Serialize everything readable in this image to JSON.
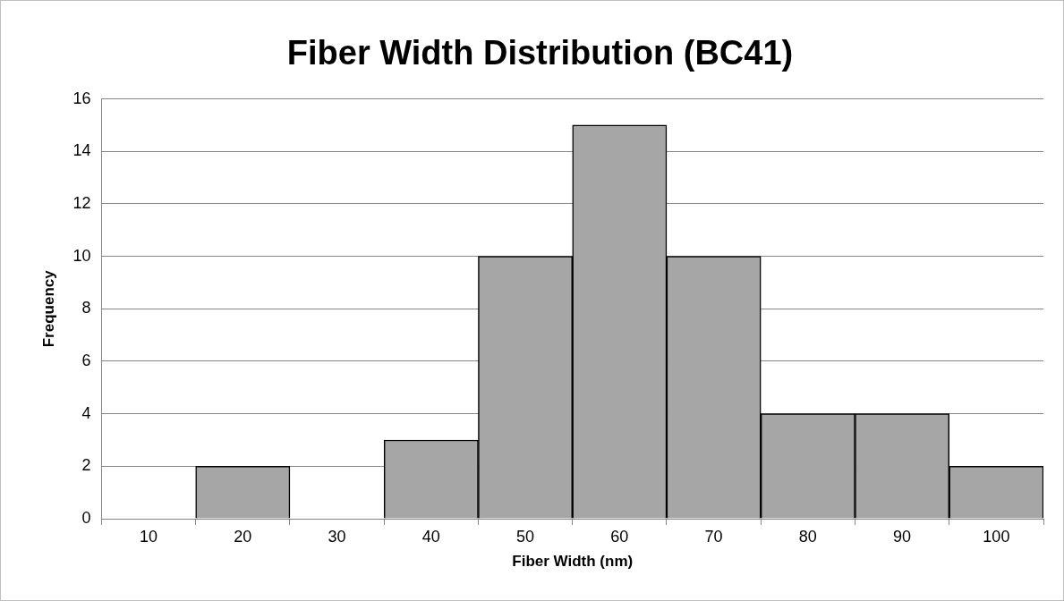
{
  "chart_data": {
    "type": "bar",
    "title": "Fiber Width Distribution (BC41)",
    "xlabel": "Fiber Width (nm)",
    "ylabel": "Frequency",
    "categories": [
      "10",
      "20",
      "30",
      "40",
      "50",
      "60",
      "70",
      "80",
      "90",
      "100"
    ],
    "values": [
      0,
      2,
      0,
      3,
      10,
      15,
      10,
      4,
      4,
      2
    ],
    "color": "#a6a6a6",
    "ylim": [
      0,
      16
    ],
    "yticks": [
      0,
      2,
      4,
      6,
      8,
      10,
      12,
      14,
      16
    ],
    "grid": "y"
  }
}
